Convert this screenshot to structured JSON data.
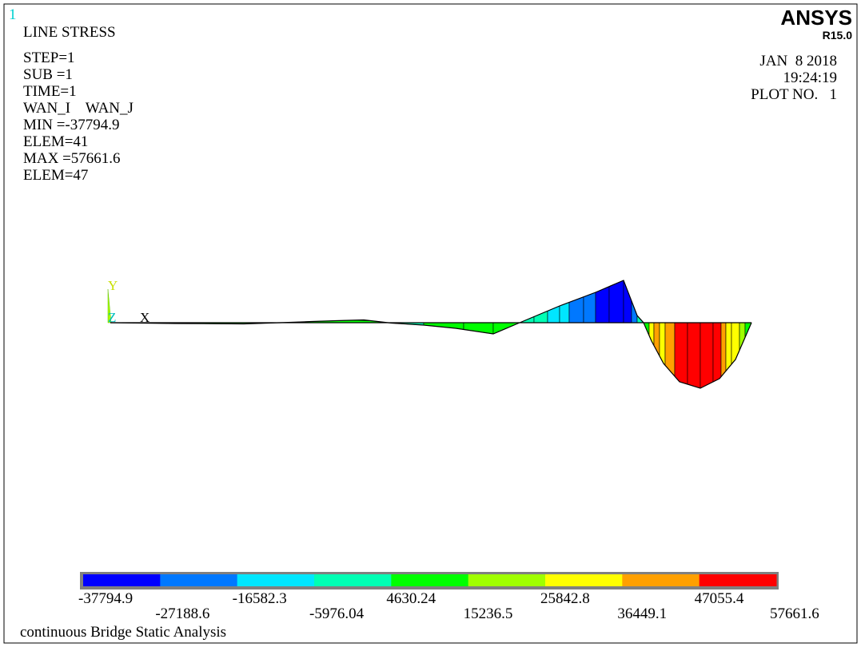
{
  "window_number": "1",
  "plot_title": "LINE STRESS",
  "info_lines": [
    "STEP=1",
    "SUB =1",
    "TIME=1",
    "WAN_I    WAN_J",
    "MIN =-37794.9",
    "ELEM=41",
    "MAX =57661.6",
    "ELEM=47"
  ],
  "brand": {
    "name": "ANSYS",
    "version": "R15.0"
  },
  "date": "JAN  8 2018",
  "time": "19:24:19",
  "plot_no": "PLOT NO.   1",
  "triad": {
    "y": "Y",
    "z": "Z",
    "x": "X"
  },
  "legend": {
    "colors": [
      "#0000ff",
      "#0078ff",
      "#00e6ff",
      "#00ffb4",
      "#00ff00",
      "#a0ff00",
      "#ffff00",
      "#ffa000",
      "#ff0000"
    ],
    "labels": [
      "-37794.9",
      "-27188.6",
      "-16582.3",
      "-5976.04",
      "4630.24",
      "15236.5",
      "25842.8",
      "36449.1",
      "47055.4",
      "57661.6"
    ]
  },
  "caption": "continuous Bridge Static Analysis"
}
